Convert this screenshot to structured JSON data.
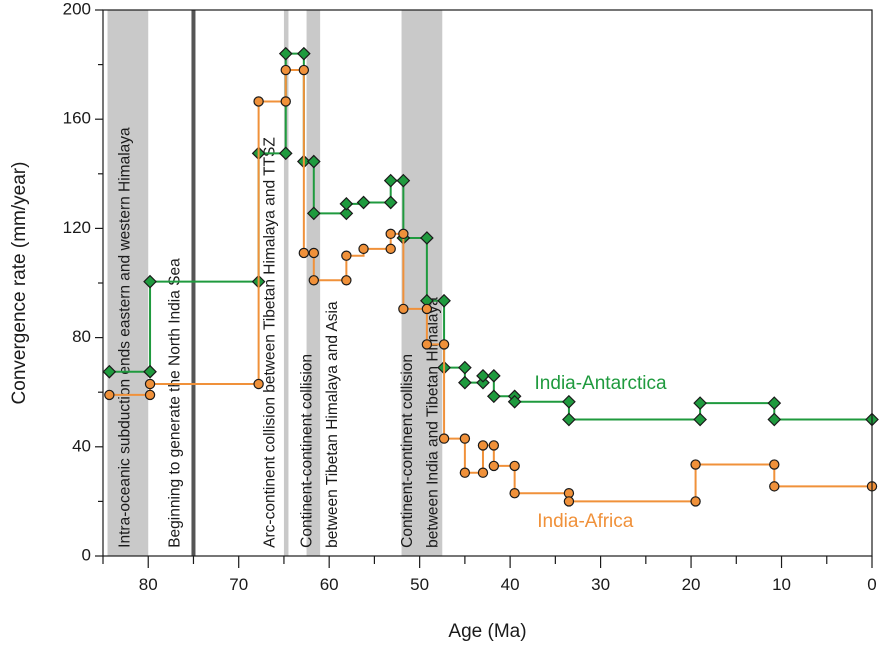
{
  "chart_data": {
    "type": "line",
    "xlabel": "Age (Ma)",
    "ylabel": "Convergence rate (mm/year)",
    "xlim": [
      85,
      0
    ],
    "ylim": [
      0,
      200
    ],
    "x_ticks": [
      80,
      70,
      60,
      50,
      40,
      30,
      20,
      10,
      0
    ],
    "y_ticks": [
      0,
      40,
      80,
      120,
      160,
      200
    ],
    "grid": false,
    "bands": [
      {
        "start": 84.5,
        "end": 80,
        "color": "#c9c9c9"
      },
      {
        "start": 65,
        "end": 64.5,
        "color": "#c9c9c9"
      },
      {
        "start": 62.5,
        "end": 61,
        "color": "#c9c9c9"
      },
      {
        "start": 52,
        "end": 47.5,
        "color": "#c9c9c9"
      }
    ],
    "vlines": [
      {
        "x": 75,
        "color": "#555555"
      }
    ],
    "annotations": [
      {
        "text": "Intra-oceanic subduction ends eastern and western Himalaya",
        "x": 82.5,
        "y": 3
      },
      {
        "text": "Beginning to generate the North India Sea",
        "x": 77,
        "y": 3
      },
      {
        "text": "Arc-continent collision between Tibetan Himalaya and TTSZ",
        "x": 66.5,
        "y": 3
      },
      {
        "text": "Continent-continent collision",
        "x": 62.4,
        "y": 3
      },
      {
        "text": "between Tibetan Himalaya and Asia",
        "x": 59.6,
        "y": 3
      },
      {
        "text": "Continent-continent collision",
        "x": 51.3,
        "y": 3
      },
      {
        "text": "between India and Tibetan Himalaya",
        "x": 48.5,
        "y": 3
      }
    ],
    "series": [
      {
        "name": "India-Antarctica",
        "color": "#1f9a3e",
        "marker": "diamond",
        "label_position": {
          "x": 37.3,
          "y": 63
        },
        "steps": [
          [
            84.3,
            67.5,
            79.8,
            67.5
          ],
          [
            79.8,
            100.5,
            67.8,
            100.5
          ],
          [
            67.8,
            147.5,
            64.8,
            147.5
          ],
          [
            64.8,
            184,
            62.8,
            184
          ],
          [
            62.8,
            144.5,
            61.7,
            144.5
          ],
          [
            61.7,
            125.5,
            58.1,
            125.5
          ],
          [
            58.1,
            129,
            56.2,
            129
          ],
          [
            56.2,
            129.5,
            53.2,
            129.5
          ],
          [
            53.2,
            137.5,
            51.8,
            137.5
          ],
          [
            51.8,
            116.5,
            49.2,
            116.5
          ],
          [
            49.2,
            93.5,
            47.3,
            93.5
          ],
          [
            47.3,
            69,
            45,
            69
          ],
          [
            45,
            63.5,
            43,
            63.5
          ],
          [
            43,
            66,
            41.8,
            66
          ],
          [
            41.8,
            58.5,
            39.5,
            58.5
          ],
          [
            39.5,
            56.5,
            33.5,
            56.5
          ],
          [
            33.5,
            50,
            19,
            50
          ],
          [
            19,
            56,
            10.8,
            56
          ],
          [
            10.8,
            50,
            0,
            50
          ]
        ],
        "points": [
          [
            84.3,
            67.5
          ],
          [
            79.8,
            67.5
          ],
          [
            79.8,
            100.5
          ],
          [
            67.8,
            100.5
          ],
          [
            67.8,
            147.5
          ],
          [
            64.8,
            147.5
          ],
          [
            64.8,
            184
          ],
          [
            62.8,
            184
          ],
          [
            62.8,
            144.5
          ],
          [
            61.7,
            144.5
          ],
          [
            61.7,
            125.5
          ],
          [
            58.1,
            125.5
          ],
          [
            58.1,
            129
          ],
          [
            56.2,
            129.5
          ],
          [
            53.2,
            129.5
          ],
          [
            53.2,
            137.5
          ],
          [
            51.8,
            137.5
          ],
          [
            51.8,
            116.5
          ],
          [
            49.2,
            116.5
          ],
          [
            49.2,
            93.5
          ],
          [
            47.3,
            93.5
          ],
          [
            47.3,
            69
          ],
          [
            45,
            69
          ],
          [
            45,
            63.5
          ],
          [
            43,
            63.5
          ],
          [
            43,
            66
          ],
          [
            41.8,
            66
          ],
          [
            41.8,
            58.5
          ],
          [
            39.5,
            58.5
          ],
          [
            39.5,
            56.5
          ],
          [
            33.5,
            56.5
          ],
          [
            33.5,
            50
          ],
          [
            19,
            50
          ],
          [
            19,
            56
          ],
          [
            10.8,
            56
          ],
          [
            10.8,
            50
          ],
          [
            0,
            50
          ]
        ]
      },
      {
        "name": "India-Africa",
        "color": "#f0913a",
        "marker": "circle",
        "label_position": {
          "x": 37,
          "y": 12.5
        },
        "steps": [
          [
            84.3,
            59,
            79.8,
            59
          ],
          [
            79.8,
            63,
            67.8,
            63
          ],
          [
            67.8,
            166.5,
            64.8,
            166.5
          ],
          [
            64.8,
            178,
            62.8,
            178
          ],
          [
            62.8,
            111,
            61.7,
            111
          ],
          [
            61.7,
            101,
            58.1,
            101
          ],
          [
            58.1,
            110,
            56.2,
            110
          ],
          [
            56.2,
            112.5,
            53.2,
            112.5
          ],
          [
            53.2,
            118,
            51.8,
            118
          ],
          [
            51.8,
            90.5,
            49.2,
            90.5
          ],
          [
            49.2,
            77.5,
            47.3,
            77.5
          ],
          [
            47.3,
            43,
            45,
            43
          ],
          [
            45,
            30.5,
            43,
            30.5
          ],
          [
            43,
            40.5,
            41.8,
            40.5
          ],
          [
            41.8,
            33,
            39.5,
            33
          ],
          [
            39.5,
            23,
            33.5,
            23
          ],
          [
            33.5,
            20,
            19.5,
            20
          ],
          [
            19.5,
            33.5,
            10.8,
            33.5
          ],
          [
            10.8,
            25.5,
            0,
            25.5
          ]
        ],
        "points": [
          [
            84.3,
            59
          ],
          [
            79.8,
            59
          ],
          [
            79.8,
            63
          ],
          [
            67.8,
            63
          ],
          [
            67.8,
            166.5
          ],
          [
            64.8,
            166.5
          ],
          [
            64.8,
            178
          ],
          [
            62.8,
            178
          ],
          [
            62.8,
            111
          ],
          [
            61.7,
            111
          ],
          [
            61.7,
            101
          ],
          [
            58.1,
            101
          ],
          [
            58.1,
            110
          ],
          [
            56.2,
            112.5
          ],
          [
            53.2,
            112.5
          ],
          [
            53.2,
            118
          ],
          [
            51.8,
            118
          ],
          [
            51.8,
            90.5
          ],
          [
            49.2,
            90.5
          ],
          [
            49.2,
            77.5
          ],
          [
            47.3,
            77.5
          ],
          [
            47.3,
            43
          ],
          [
            45,
            43
          ],
          [
            45,
            30.5
          ],
          [
            43,
            30.5
          ],
          [
            43,
            40.5
          ],
          [
            41.8,
            40.5
          ],
          [
            41.8,
            33
          ],
          [
            39.5,
            33
          ],
          [
            39.5,
            23
          ],
          [
            33.5,
            23
          ],
          [
            33.5,
            20
          ],
          [
            19.5,
            20
          ],
          [
            19.5,
            33.5
          ],
          [
            10.8,
            33.5
          ],
          [
            10.8,
            25.5
          ],
          [
            0,
            25.5
          ]
        ]
      }
    ]
  }
}
